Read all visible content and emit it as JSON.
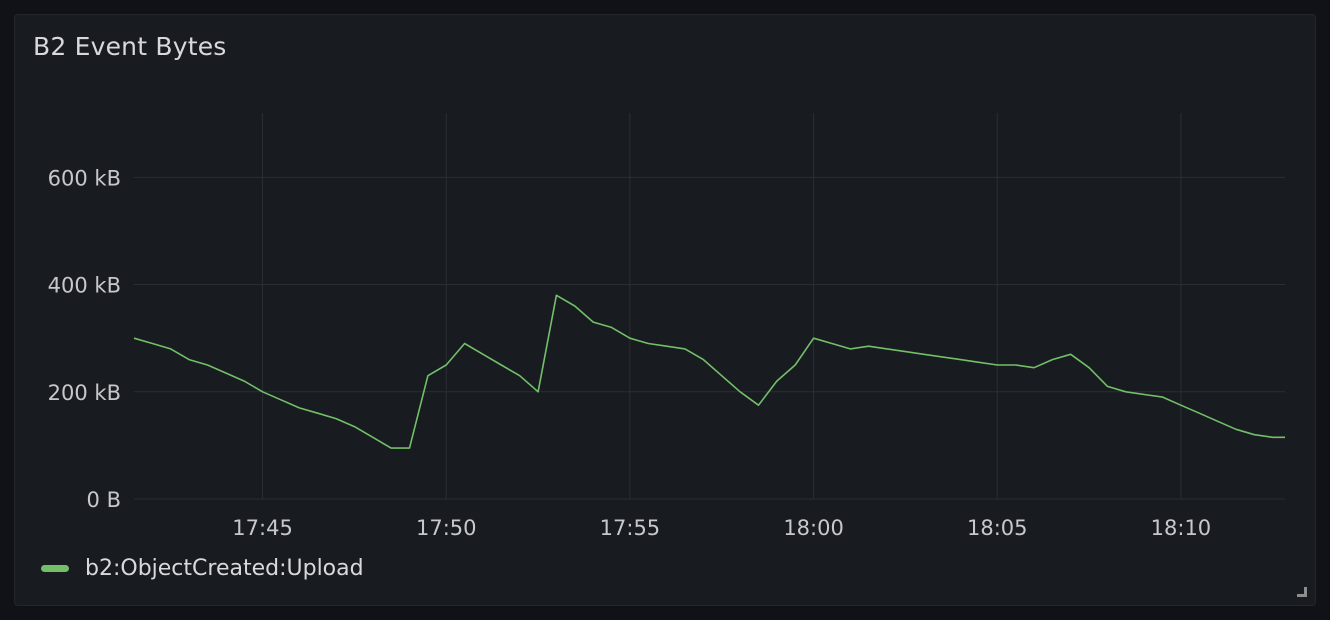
{
  "panel": {
    "title": "B2 Event Bytes"
  },
  "legend": {
    "items": [
      {
        "label": "b2:ObjectCreated:Upload",
        "color": "#73bf69"
      }
    ]
  },
  "chart_data": {
    "type": "line",
    "title": "B2 Event Bytes",
    "xlabel": "",
    "ylabel": "",
    "y_unit": "kB",
    "y_ticks": [
      {
        "value": 0,
        "label": "0 B"
      },
      {
        "value": 200,
        "label": "200 kB"
      },
      {
        "value": 400,
        "label": "400 kB"
      },
      {
        "value": 600,
        "label": "600 kB"
      }
    ],
    "x_ticks": [
      "17:45",
      "17:50",
      "17:55",
      "18:00",
      "18:05",
      "18:10"
    ],
    "ylim": [
      0,
      720
    ],
    "xlim": [
      "17:41:30",
      "18:12:50"
    ],
    "grid": true,
    "legend_position": "bottom-left",
    "series": [
      {
        "name": "b2:ObjectCreated:Upload",
        "color": "#73bf69",
        "x": [
          "17:41:30",
          "17:42:00",
          "17:42:30",
          "17:43:00",
          "17:43:30",
          "17:44:00",
          "17:44:30",
          "17:45:00",
          "17:45:30",
          "17:46:00",
          "17:46:30",
          "17:47:00",
          "17:47:30",
          "17:48:00",
          "17:48:30",
          "17:49:00",
          "17:49:30",
          "17:50:00",
          "17:50:30",
          "17:51:00",
          "17:51:30",
          "17:52:00",
          "17:52:30",
          "17:53:00",
          "17:53:30",
          "17:54:00",
          "17:54:30",
          "17:55:00",
          "17:55:30",
          "17:56:00",
          "17:56:30",
          "17:57:00",
          "17:57:30",
          "17:58:00",
          "17:58:30",
          "17:59:00",
          "17:59:30",
          "18:00:00",
          "18:00:30",
          "18:01:00",
          "18:01:30",
          "18:02:00",
          "18:02:30",
          "18:03:00",
          "18:03:30",
          "18:04:00",
          "18:04:30",
          "18:05:00",
          "18:05:30",
          "18:06:00",
          "18:06:30",
          "18:07:00",
          "18:07:30",
          "18:08:00",
          "18:08:30",
          "18:09:00",
          "18:09:30",
          "18:10:00",
          "18:10:30",
          "18:11:00",
          "18:11:30",
          "18:12:00",
          "18:12:30",
          "18:12:50"
        ],
        "values": [
          300,
          290,
          280,
          260,
          250,
          235,
          220,
          200,
          185,
          170,
          160,
          150,
          135,
          115,
          95,
          95,
          230,
          250,
          290,
          270,
          250,
          230,
          200,
          380,
          360,
          330,
          320,
          300,
          290,
          285,
          280,
          260,
          230,
          200,
          175,
          220,
          250,
          300,
          290,
          280,
          285,
          280,
          275,
          270,
          265,
          260,
          255,
          250,
          250,
          245,
          260,
          270,
          245,
          210,
          200,
          195,
          190,
          175,
          160,
          145,
          130,
          120,
          115,
          115
        ]
      }
    ]
  }
}
